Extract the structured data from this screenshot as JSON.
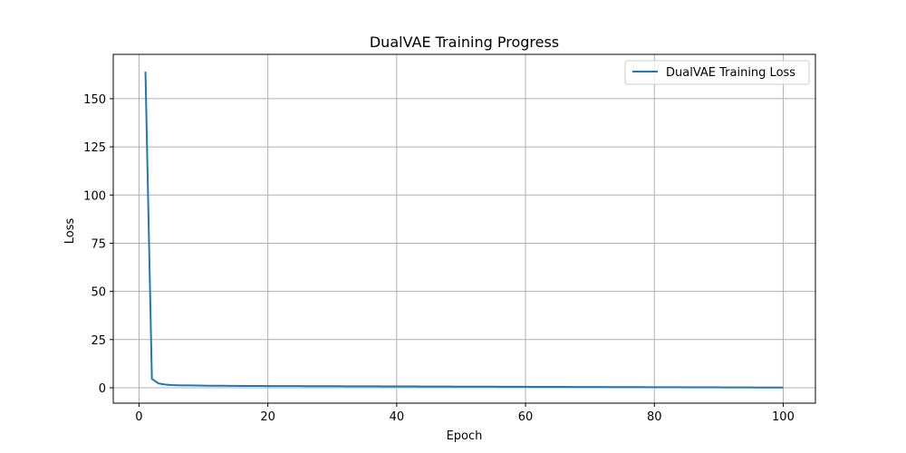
{
  "chart_data": {
    "type": "line",
    "title": "DualVAE Training Progress",
    "xlabel": "Epoch",
    "ylabel": "Loss",
    "xlim": [
      -4,
      105
    ],
    "ylim": [
      -8,
      173
    ],
    "xticks": [
      0,
      20,
      40,
      60,
      80,
      100
    ],
    "yticks": [
      0,
      25,
      50,
      75,
      100,
      125,
      150
    ],
    "grid": true,
    "legend_position": "top-right",
    "series": [
      {
        "name": "DualVAE Training Loss",
        "color": "#1f77b4",
        "x": [
          1,
          2,
          3,
          4,
          5,
          6,
          7,
          8,
          9,
          10,
          11,
          12,
          13,
          14,
          15,
          16,
          17,
          18,
          19,
          20,
          21,
          22,
          23,
          24,
          25,
          26,
          27,
          28,
          29,
          30,
          31,
          32,
          33,
          34,
          35,
          36,
          37,
          38,
          39,
          40,
          41,
          42,
          43,
          44,
          45,
          46,
          47,
          48,
          49,
          50,
          51,
          52,
          53,
          54,
          55,
          56,
          57,
          58,
          59,
          60,
          61,
          62,
          63,
          64,
          65,
          66,
          67,
          68,
          69,
          70,
          71,
          72,
          73,
          74,
          75,
          76,
          77,
          78,
          79,
          80,
          81,
          82,
          83,
          84,
          85,
          86,
          87,
          88,
          89,
          90,
          91,
          92,
          93,
          94,
          95,
          96,
          97,
          98,
          99,
          100
        ],
        "y": [
          164,
          4.6,
          2.3,
          1.7,
          1.4,
          1.3,
          1.25,
          1.2,
          1.15,
          1.1,
          1.08,
          1.05,
          1.02,
          1.0,
          0.98,
          0.96,
          0.95,
          0.93,
          0.92,
          0.9,
          0.89,
          0.88,
          0.87,
          0.86,
          0.85,
          0.84,
          0.83,
          0.82,
          0.81,
          0.8,
          0.79,
          0.78,
          0.77,
          0.76,
          0.75,
          0.74,
          0.73,
          0.72,
          0.71,
          0.7,
          0.69,
          0.68,
          0.67,
          0.66,
          0.65,
          0.64,
          0.63,
          0.62,
          0.61,
          0.6,
          0.59,
          0.58,
          0.57,
          0.56,
          0.55,
          0.54,
          0.53,
          0.52,
          0.51,
          0.5,
          0.49,
          0.48,
          0.47,
          0.46,
          0.45,
          0.44,
          0.43,
          0.42,
          0.41,
          0.4,
          0.39,
          0.38,
          0.37,
          0.36,
          0.35,
          0.34,
          0.33,
          0.32,
          0.31,
          0.3,
          0.29,
          0.28,
          0.27,
          0.26,
          0.25,
          0.24,
          0.23,
          0.22,
          0.21,
          0.2,
          0.19,
          0.18,
          0.17,
          0.16,
          0.15,
          0.14,
          0.13,
          0.12,
          0.11,
          0.1
        ]
      }
    ]
  }
}
